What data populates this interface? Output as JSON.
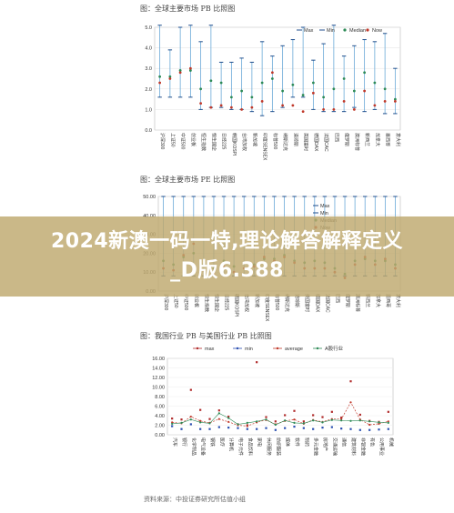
{
  "banner": {
    "line1": "2024新澳一码一特,理论解答解释定义",
    "line2": "_D版6.388"
  },
  "source_note": "资料来源：中投证券研究所估值小组",
  "chart_data": [
    {
      "type": "scatter",
      "title": "图：全球主要市场 PB 比照图",
      "ylim": [
        0,
        5
      ],
      "yticks": [
        "0.0",
        "1.0",
        "2.0",
        "3.0",
        "4.0",
        "5.0"
      ],
      "legend_position": "top-right",
      "legend": [
        "Max",
        "Min",
        "Median",
        "Now"
      ],
      "categories": [
        "沪深300",
        "上证50",
        "中证500",
        "创业板",
        "恒生指数",
        "恒生国企",
        "日经225",
        "韩国KOSPI",
        "台湾加权",
        "新加坡",
        "印度SENSEX",
        "标普500",
        "纳斯达克",
        "道琼斯",
        "英国富时",
        "德国DAX",
        "法国CAC",
        "巴西",
        "俄罗斯",
        "澳洲标普",
        "新西兰",
        "加拿大",
        "墨西哥",
        "意大利"
      ],
      "series": [
        {
          "name": "Max",
          "values": [
            5.1,
            3.9,
            5.0,
            5.1,
            4.3,
            5.1,
            3.3,
            3.3,
            3.5,
            3.3,
            4.3,
            3.6,
            4.1,
            4.4,
            5.0,
            3.4,
            4.2,
            5.1,
            3.6,
            4.1,
            4.4,
            4.3,
            4.7,
            3.0
          ]
        },
        {
          "name": "Min",
          "values": [
            1.6,
            1.6,
            1.6,
            1.6,
            1.0,
            1.1,
            1.1,
            1.0,
            1.0,
            0.9,
            0.7,
            0.9,
            1.1,
            1.6,
            1.6,
            1.0,
            0.9,
            0.9,
            0.9,
            1.1,
            0.9,
            1.0,
            0.8,
            0.8
          ]
        },
        {
          "name": "Median",
          "values": [
            2.6,
            2.6,
            2.9,
            2.9,
            2.0,
            2.4,
            2.3,
            1.6,
            1.9,
            1.6,
            2.3,
            2.5,
            1.9,
            2.2,
            1.7,
            2.3,
            1.6,
            2.0,
            2.5,
            1.9,
            2.8,
            2.3,
            2.0,
            1.5
          ]
        },
        {
          "name": "Now",
          "values": [
            2.3,
            2.5,
            2.8,
            3.0,
            1.3,
            1.1,
            1.2,
            1.1,
            1.0,
            1.1,
            1.4,
            2.8,
            1.2,
            1.2,
            0.9,
            1.8,
            1.0,
            1.0,
            1.4,
            1.0,
            1.9,
            1.2,
            1.4,
            1.4
          ]
        }
      ]
    },
    {
      "type": "scatter",
      "title": "图：全球主要市场 PE 比照图",
      "ylim": [
        0,
        50
      ],
      "yticks": [
        "0.00",
        "10.00",
        "20.00",
        "30.00",
        "40.00",
        "50.00"
      ],
      "legend_position": "top-right",
      "legend": [
        "Max",
        "Min",
        "Median",
        "Now"
      ],
      "categories": [
        "沪深300",
        "上证50",
        "中证500",
        "创业板",
        "恒生指数",
        "恒生国企",
        "日经225",
        "韩国KOSPI",
        "台湾加权",
        "新加坡",
        "印度SENSEX",
        "标普500",
        "纳斯达克",
        "道琼斯",
        "英国富时",
        "德国DAX",
        "法国CAC",
        "巴西",
        "俄罗斯",
        "澳洲标普",
        "新西兰",
        "加拿大",
        "墨西哥",
        "意大利"
      ],
      "series": [
        {
          "name": "Max",
          "values": [
            50,
            50,
            50,
            50,
            50,
            50,
            50,
            50,
            50,
            50,
            50,
            50,
            50,
            50,
            50,
            50,
            50,
            50,
            50,
            50,
            50,
            50,
            50,
            50
          ]
        },
        {
          "name": "Min",
          "values": [
            8,
            8,
            8,
            8,
            8,
            8,
            8,
            8,
            8,
            8,
            8,
            8,
            8,
            8,
            8,
            8,
            8,
            8,
            8,
            8,
            8,
            8,
            8,
            8
          ]
        },
        {
          "name": "Median",
          "values": [
            16,
            14,
            18,
            20,
            14,
            12,
            16,
            13,
            15,
            14,
            17,
            17,
            19,
            16,
            15,
            16,
            15,
            12,
            9,
            16,
            17,
            16,
            16,
            14
          ]
        },
        {
          "name": "Now",
          "values": [
            12,
            11,
            19,
            25,
            11,
            9,
            13,
            10,
            12,
            13,
            18,
            16,
            18,
            15,
            12,
            12,
            12,
            10,
            7,
            14,
            18,
            14,
            17,
            12
          ]
        }
      ]
    },
    {
      "type": "line",
      "title": "图：我国行业 PB 与美国行业 PB 比照图",
      "ylim": [
        0,
        16
      ],
      "yticks": [
        "0.00",
        "2.00",
        "4.00",
        "6.00",
        "8.00",
        "10.00",
        "12.00",
        "14.00",
        "16.00"
      ],
      "legend_position": "top-center",
      "legend": [
        "max",
        "min",
        "average",
        "A股行业"
      ],
      "categories": [
        "汽车",
        "银行",
        "化学制品",
        "电气设备",
        "钢铁",
        "医疗",
        "计算机",
        "电子元件",
        "食品饮料",
        "家电",
        "休闲服务",
        "纺织服装",
        "媒体",
        "软件",
        "制药",
        "多元金融",
        "房地产",
        "交通运输",
        "通信",
        "建筑材料",
        "非银金融",
        "有色",
        "公用事业",
        "机械"
      ],
      "series": [
        {
          "name": "max",
          "values": [
            3.4,
            3.2,
            9.4,
            5.2,
            3.3,
            5.1,
            3.8,
            2.2,
            2.0,
            15.2,
            3.7,
            2.8,
            4.1,
            5.0,
            2.8,
            4.1,
            3.7,
            4.8,
            3.6,
            11.2,
            4.2,
            2.9,
            2.7,
            4.8
          ]
        },
        {
          "name": "min",
          "values": [
            1.8,
            1.2,
            2.2,
            1.2,
            1.2,
            1.6,
            1.5,
            1.4,
            1.2,
            1.2,
            1.4,
            1.0,
            1.4,
            1.7,
            1.4,
            1.2,
            1.5,
            1.6,
            1.3,
            1.2,
            1.0,
            1.0,
            1.1,
            1.2
          ]
        },
        {
          "name": "average",
          "values": [
            2.6,
            2.4,
            3.8,
            2.9,
            2.5,
            3.3,
            2.7,
            2.0,
            1.8,
            2.6,
            3.1,
            2.2,
            2.9,
            3.2,
            2.3,
            3.1,
            2.7,
            3.3,
            3.3,
            6.8,
            3.2,
            2.1,
            2.3,
            2.8
          ]
        },
        {
          "name": "A股行业",
          "values": [
            2.3,
            2.5,
            3.2,
            2.6,
            2.4,
            4.5,
            3.5,
            2.2,
            2.5,
            2.8,
            3.2,
            2.1,
            3.0,
            2.5,
            2.4,
            3.0,
            2.6,
            3.1,
            3.0,
            2.9,
            3.0,
            2.8,
            2.6,
            2.5
          ]
        }
      ]
    }
  ]
}
